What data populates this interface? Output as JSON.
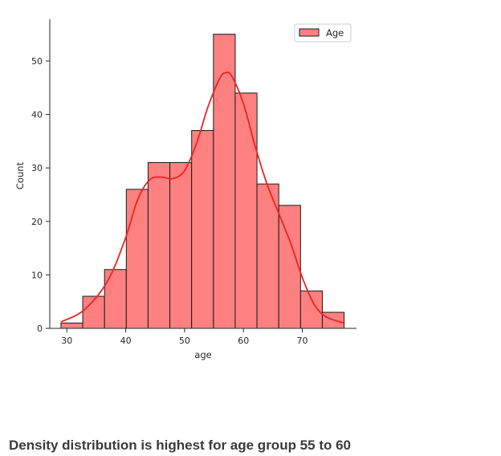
{
  "chart_data": {
    "type": "bar",
    "subtype": "histogram-with-kde",
    "xlabel": "age",
    "ylabel": "Count",
    "xlim": [
      27.1,
      79.2
    ],
    "ylim": [
      0,
      57.8
    ],
    "xticks": [
      30,
      40,
      50,
      60,
      70
    ],
    "yticks": [
      0,
      10,
      20,
      30,
      40,
      50
    ],
    "bin_edges": [
      29,
      32.7,
      36.4,
      40.1,
      43.8,
      47.5,
      51.2,
      54.9,
      58.6,
      62.3,
      66,
      69.7,
      73.4,
      77.1
    ],
    "values": [
      1,
      6,
      11,
      26,
      31,
      31,
      37,
      55,
      44,
      27,
      23,
      7,
      3
    ],
    "series": [
      {
        "name": "Age",
        "values": [
          1,
          6,
          11,
          26,
          31,
          31,
          37,
          55,
          44,
          27,
          23,
          7,
          3
        ]
      }
    ],
    "kde": {
      "x": [
        29,
        33,
        37,
        40,
        42,
        44,
        46,
        48,
        50,
        52,
        54,
        56,
        57,
        58,
        60,
        62,
        64,
        66,
        68,
        70,
        72,
        74,
        77
      ],
      "y": [
        1.2,
        3.5,
        9,
        17,
        24,
        27.7,
        28.3,
        28.0,
        29.5,
        34.5,
        41.5,
        46.8,
        47.8,
        47.2,
        42,
        34,
        27,
        21.5,
        16,
        9.5,
        4.5,
        2.2,
        1.0
      ]
    },
    "legend": {
      "entries": [
        "Age"
      ],
      "position": "top-right"
    },
    "grid": false,
    "colors": {
      "bar_fill": "#ff8080",
      "bar_edge": "#1a1a1a",
      "kde_line": "#ee2222"
    }
  },
  "caption": "Density distribution is highest for age group 55 to 60"
}
